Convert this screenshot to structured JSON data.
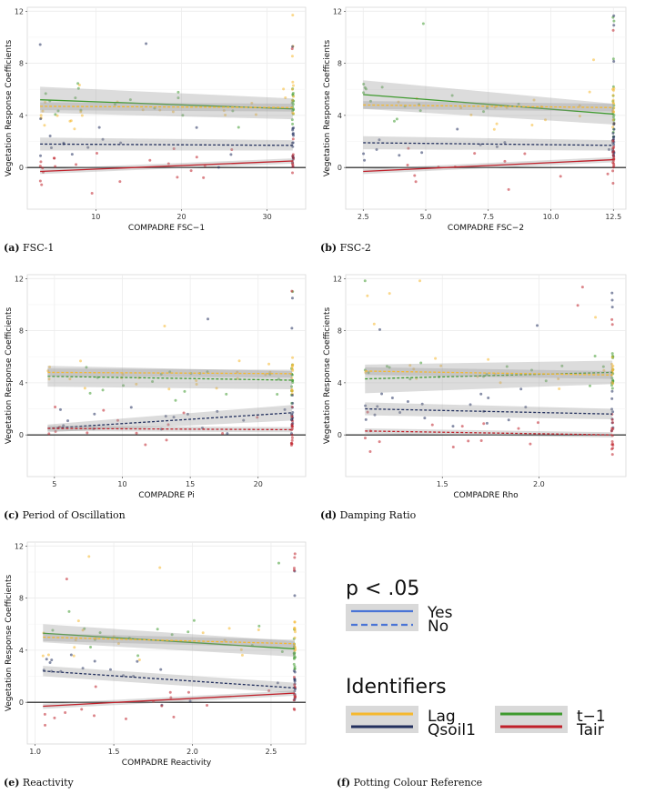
{
  "chart_data": [
    {
      "type": "scatter",
      "id": "fsc1",
      "caption_tag": "(a)",
      "caption_text": "FSC-1",
      "xlabel": "COMPADRE FSC−1",
      "ylabel": "Vegetation Response Coefficients",
      "xlim": [
        2,
        34.5
      ],
      "ylim": [
        -3.2,
        12.3
      ],
      "xticks": [
        10,
        20,
        30
      ],
      "xtick_labels": [
        "10",
        "20",
        "30"
      ],
      "yticks": [
        0,
        4,
        8,
        12
      ],
      "max_x": 33,
      "min_x": 3.5,
      "series": [
        {
          "name": "t−1",
          "y0": 5.2,
          "y1": 4.5,
          "ci0": 1.0,
          "ci1": 0.8,
          "sig": true
        },
        {
          "name": "Lag",
          "y0": 4.7,
          "y1": 4.6,
          "ci0": 0.3,
          "ci1": 0.3,
          "sig": false
        },
        {
          "name": "Qsoil1",
          "y0": 1.8,
          "y1": 1.7,
          "ci0": 0.5,
          "ci1": 0.4,
          "sig": false
        },
        {
          "name": "Tair",
          "y0": -0.3,
          "y1": 0.5,
          "ci0": 0.2,
          "ci1": 0.2,
          "sig": true
        }
      ]
    },
    {
      "type": "scatter",
      "id": "fsc2",
      "caption_tag": "(b)",
      "caption_text": "FSC-2",
      "xlabel": "COMPADRE FSC−2",
      "ylabel": "Vegetation Response Coefficients",
      "xlim": [
        1.8,
        13.0
      ],
      "ylim": [
        -3.2,
        12.3
      ],
      "xticks": [
        2.5,
        5.0,
        7.5,
        10.0,
        12.5
      ],
      "xtick_labels": [
        "2.5",
        "5.0",
        "7.5",
        "10.0",
        "12.5"
      ],
      "yticks": [
        0,
        4,
        8,
        12
      ],
      "max_x": 12.5,
      "min_x": 2.5,
      "series": [
        {
          "name": "t−1",
          "y0": 5.6,
          "y1": 4.1,
          "ci0": 1.1,
          "ci1": 0.8,
          "sig": true
        },
        {
          "name": "Lag",
          "y0": 4.8,
          "y1": 4.6,
          "ci0": 0.3,
          "ci1": 0.3,
          "sig": false
        },
        {
          "name": "Qsoil1",
          "y0": 1.9,
          "y1": 1.7,
          "ci0": 0.5,
          "ci1": 0.4,
          "sig": false
        },
        {
          "name": "Tair",
          "y0": -0.3,
          "y1": 0.6,
          "ci0": 0.2,
          "ci1": 0.2,
          "sig": true
        }
      ]
    },
    {
      "type": "scatter",
      "id": "pi",
      "caption_tag": "(c)",
      "caption_text": "Period of Oscillation",
      "xlabel": "COMPADRE Pi",
      "ylabel": "Vegetation Response Coefficients",
      "xlim": [
        3.0,
        23.5
      ],
      "ylim": [
        -3.2,
        12.3
      ],
      "xticks": [
        5,
        10,
        15,
        20
      ],
      "xtick_labels": [
        "5",
        "10",
        "15",
        "20"
      ],
      "yticks": [
        0,
        4,
        8,
        12
      ],
      "max_x": 22.5,
      "min_x": 4.5,
      "series": [
        {
          "name": "t−1",
          "y0": 4.5,
          "y1": 4.2,
          "ci0": 0.8,
          "ci1": 0.7,
          "sig": false
        },
        {
          "name": "Lag",
          "y0": 4.8,
          "y1": 4.7,
          "ci0": 0.3,
          "ci1": 0.3,
          "sig": false
        },
        {
          "name": "Qsoil1",
          "y0": 0.5,
          "y1": 1.7,
          "ci0": 0.3,
          "ci1": 0.6,
          "sig": false
        },
        {
          "name": "Tair",
          "y0": 0.5,
          "y1": 0.4,
          "ci0": 0.2,
          "ci1": 0.2,
          "sig": false
        }
      ]
    },
    {
      "type": "scatter",
      "id": "rho",
      "caption_tag": "(d)",
      "caption_text": "Damping Ratio",
      "xlabel": "COMPADRE Rho",
      "ylabel": "Vegetation Response Coefficients",
      "xlim": [
        1.0,
        2.45
      ],
      "ylim": [
        -3.2,
        12.3
      ],
      "xticks": [
        1.5,
        2.0
      ],
      "xtick_labels": [
        "1.5",
        "2.0"
      ],
      "yticks": [
        0,
        4,
        8,
        12
      ],
      "max_x": 2.38,
      "min_x": 1.1,
      "series": [
        {
          "name": "t−1",
          "y0": 4.3,
          "y1": 4.8,
          "ci0": 1.1,
          "ci1": 0.9,
          "sig": false
        },
        {
          "name": "Lag",
          "y0": 4.9,
          "y1": 4.6,
          "ci0": 0.3,
          "ci1": 0.3,
          "sig": false
        },
        {
          "name": "Qsoil1",
          "y0": 2.0,
          "y1": 1.6,
          "ci0": 0.5,
          "ci1": 0.4,
          "sig": false
        },
        {
          "name": "Tair",
          "y0": 0.3,
          "y1": 0.0,
          "ci0": 0.2,
          "ci1": 0.2,
          "sig": false
        }
      ]
    },
    {
      "type": "scatter",
      "id": "reactivity",
      "caption_tag": "(e)",
      "caption_text": "Reactivity",
      "xlabel": "COMPADRE Reactivity",
      "ylabel": "Vegetation Response Coefficients",
      "xlim": [
        0.95,
        2.72
      ],
      "ylim": [
        -3.2,
        12.3
      ],
      "xticks": [
        1.0,
        1.5,
        2.0,
        2.5
      ],
      "xtick_labels": [
        "1.0",
        "1.5",
        "2.0",
        "2.5"
      ],
      "yticks": [
        0,
        4,
        8,
        12
      ],
      "max_x": 2.65,
      "min_x": 1.05,
      "series": [
        {
          "name": "t−1",
          "y0": 5.3,
          "y1": 4.1,
          "ci0": 0.7,
          "ci1": 0.6,
          "sig": true
        },
        {
          "name": "Lag",
          "y0": 5.0,
          "y1": 4.5,
          "ci0": 0.3,
          "ci1": 0.3,
          "sig": false
        },
        {
          "name": "Qsoil1",
          "y0": 2.4,
          "y1": 1.1,
          "ci0": 0.4,
          "ci1": 0.4,
          "sig": false
        },
        {
          "name": "Tair",
          "y0": -0.3,
          "y1": 0.7,
          "ci0": 0.2,
          "ci1": 0.2,
          "sig": true
        }
      ]
    }
  ],
  "series_colors": {
    "Lag": "#f5b82e",
    "Qsoil1": "#23305e",
    "t−1": "#3f9a2f",
    "Tair": "#c0202a"
  },
  "legend": {
    "caption_tag": "(f)",
    "caption_text": "Potting Colour Reference",
    "sig_title": "p < .05",
    "sig_yes": "Yes",
    "sig_no": "No",
    "id_title": "Identifiers",
    "id_lag": "Lag",
    "id_qsoil": "Qsoil1",
    "id_t1": "t−1",
    "id_tair": "Tair",
    "line_color": "#4a74d6"
  }
}
